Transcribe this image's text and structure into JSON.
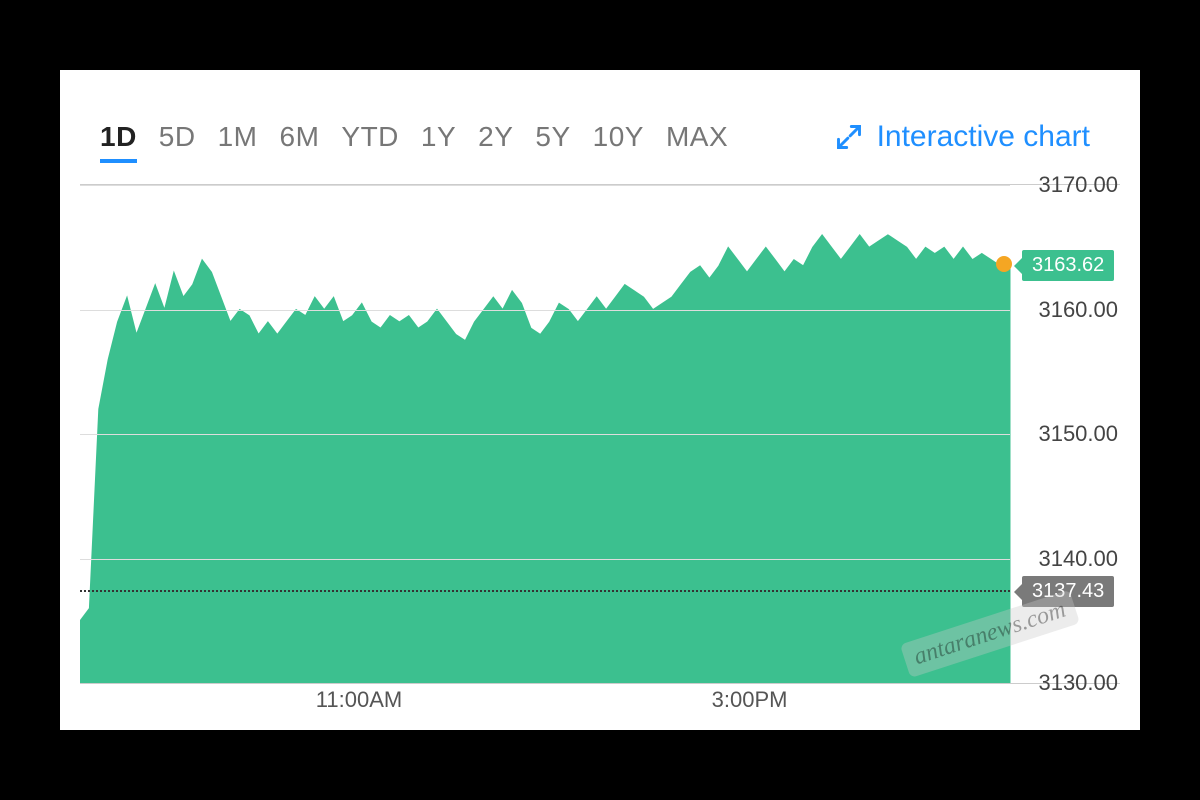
{
  "toolbar": {
    "ranges": [
      {
        "label": "1D",
        "active": true
      },
      {
        "label": "5D",
        "active": false
      },
      {
        "label": "1M",
        "active": false
      },
      {
        "label": "6M",
        "active": false
      },
      {
        "label": "YTD",
        "active": false
      },
      {
        "label": "1Y",
        "active": false
      },
      {
        "label": "2Y",
        "active": false
      },
      {
        "label": "5Y",
        "active": false
      },
      {
        "label": "10Y",
        "active": false
      },
      {
        "label": "MAX",
        "active": false
      }
    ],
    "interactive_label": "Interactive chart",
    "link_color": "#1f8fff",
    "text_color": "#777777",
    "active_text_color": "#222222"
  },
  "chart": {
    "type": "area",
    "ylim": [
      3130,
      3170
    ],
    "ytick_step": 10,
    "yticks": [
      3130,
      3140,
      3150,
      3160,
      3170
    ],
    "ytick_labels": [
      "3130.00",
      "3140.00",
      "3150.00",
      "3160.00",
      "3170.00"
    ],
    "xticks": [
      {
        "pos": 0.3,
        "label": "11:00AM"
      },
      {
        "pos": 0.72,
        "label": "3:00PM"
      }
    ],
    "prev_close": 3137.43,
    "current": 3163.62,
    "area_color": "#3cc08f",
    "marker_color": "#f5a623",
    "grid_color": "#dddddd",
    "dash_color": "#333333",
    "background_color": "#ffffff",
    "label_fontsize": 22,
    "series": [
      3135.0,
      3136.0,
      3152.0,
      3156.0,
      3159.0,
      3161.0,
      3158.0,
      3160.0,
      3162.0,
      3160.0,
      3163.0,
      3161.0,
      3162.0,
      3164.0,
      3163.0,
      3161.0,
      3159.0,
      3160.0,
      3159.5,
      3158.0,
      3159.0,
      3158.0,
      3159.0,
      3160.0,
      3159.5,
      3161.0,
      3160.0,
      3161.0,
      3159.0,
      3159.5,
      3160.5,
      3159.0,
      3158.5,
      3159.5,
      3159.0,
      3159.5,
      3158.5,
      3159.0,
      3160.0,
      3159.0,
      3158.0,
      3157.5,
      3159.0,
      3160.0,
      3161.0,
      3160.0,
      3161.5,
      3160.5,
      3158.5,
      3158.0,
      3159.0,
      3160.5,
      3160.0,
      3159.0,
      3160.0,
      3161.0,
      3160.0,
      3161.0,
      3162.0,
      3161.5,
      3161.0,
      3160.0,
      3160.5,
      3161.0,
      3162.0,
      3163.0,
      3163.5,
      3162.5,
      3163.5,
      3165.0,
      3164.0,
      3163.0,
      3164.0,
      3165.0,
      3164.0,
      3163.0,
      3164.0,
      3163.5,
      3165.0,
      3166.0,
      3165.0,
      3164.0,
      3165.0,
      3166.0,
      3165.0,
      3165.5,
      3166.0,
      3165.5,
      3165.0,
      3164.0,
      3165.0,
      3164.5,
      3165.0,
      3164.0,
      3165.0,
      3164.0,
      3164.5,
      3164.0,
      3163.5,
      3163.62
    ]
  },
  "flags": {
    "current": {
      "value": "3163.62",
      "color": "#3cc08f"
    },
    "prev_close": {
      "value": "3137.43",
      "color": "#7a7a7a"
    }
  },
  "watermark": "antaranews.com"
}
